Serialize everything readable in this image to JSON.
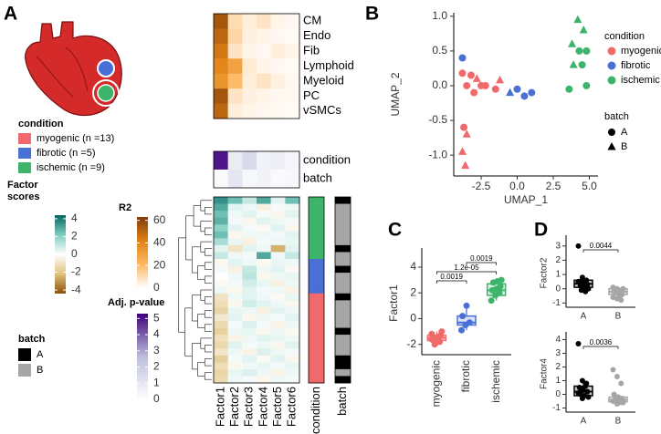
{
  "chart_data": [
    {
      "type": "heatmap",
      "panel": "A",
      "legend": {
        "title": "condition",
        "names": [
          "myogenic (n =13)",
          "fibrotic (n =5)",
          "ischemic (n =9)"
        ],
        "colors": [
          "#f0696b",
          "#4a6fd6",
          "#3cb56b"
        ]
      },
      "batch_legend": {
        "title": "batch",
        "names": [
          "A",
          "B"
        ],
        "colors": [
          "#000000",
          "#a6a6a6"
        ]
      },
      "colorbars": [
        {
          "title": [
            "Factor",
            "scores"
          ],
          "lim": [
            -4.4,
            4.4
          ],
          "ticks": [
            4,
            2,
            0,
            -2,
            -4
          ],
          "colors": [
            "#8c510a",
            "#dfc27d",
            "#ffffff",
            "#80cdc1",
            "#01665e"
          ]
        },
        {
          "title": [
            "R2"
          ],
          "lim": [
            0,
            63
          ],
          "ticks": [
            60,
            40,
            20,
            0
          ],
          "colors": [
            "#ffffff",
            "#fdb863",
            "#e08214",
            "#7f3b08"
          ]
        },
        {
          "title": [
            "Adj. p-value"
          ],
          "lim": [
            0,
            5.3
          ],
          "ticks": [
            5,
            4,
            3,
            2,
            1,
            0
          ],
          "colors": [
            "#ffffff",
            "#bcbddc",
            "#3f007d"
          ]
        }
      ],
      "cell_types": [
        "CM",
        "Endo",
        "Fib",
        "Lymphoid",
        "Myeloid",
        "PC",
        "vSMCs"
      ],
      "factors": [
        "Factor1",
        "Factor2",
        "Factor3",
        "Factor4",
        "Factor5",
        "Factor6"
      ],
      "r2": [
        [
          55,
          10,
          5,
          8,
          3,
          2
        ],
        [
          50,
          12,
          4,
          3,
          2,
          1
        ],
        [
          45,
          8,
          3,
          2,
          5,
          3
        ],
        [
          40,
          30,
          6,
          3,
          2,
          1
        ],
        [
          35,
          20,
          5,
          8,
          4,
          2
        ],
        [
          55,
          8,
          4,
          3,
          2,
          2
        ],
        [
          50,
          5,
          3,
          2,
          2,
          1
        ]
      ],
      "covariates": [
        "condition",
        "batch"
      ],
      "pvalues": [
        [
          5,
          0.8,
          1.5,
          0.5,
          0.7,
          0.4
        ],
        [
          0.2,
          1,
          0.3,
          0.5,
          0.2,
          0.3
        ]
      ],
      "scores": [
        [
          3.5,
          2.5,
          1.0,
          3.0,
          0.5,
          2.5
        ],
        [
          3.0,
          0.5,
          0.3,
          -0.5,
          0.2,
          0.3
        ],
        [
          2.5,
          0.3,
          0.5,
          0.2,
          -0.3,
          0.5
        ],
        [
          2.8,
          0.2,
          -0.3,
          0.5,
          0.3,
          0.2
        ],
        [
          2.0,
          0.5,
          0.2,
          -0.2,
          0.5,
          -0.3
        ],
        [
          2.5,
          -0.3,
          0.3,
          0.3,
          0.2,
          0.5
        ],
        [
          1.5,
          0.4,
          -0.5,
          0.2,
          0.3,
          0.4
        ],
        [
          0.5,
          -1.0,
          0.5,
          0.3,
          -2.5,
          0.5
        ],
        [
          1.0,
          0.3,
          0.2,
          3.0,
          0.3,
          1.0
        ],
        [
          -0.3,
          0.5,
          0.3,
          -0.2,
          0.4,
          0.3
        ],
        [
          0.2,
          -0.5,
          1.0,
          0.3,
          0.5,
          -0.2
        ],
        [
          0.0,
          0.3,
          1.2,
          -0.3,
          0.3,
          0.4
        ],
        [
          -0.2,
          0.2,
          0.8,
          0.4,
          -0.5,
          0.3
        ],
        [
          0.3,
          -0.3,
          0.5,
          0.2,
          0.3,
          -0.4
        ],
        [
          -1.0,
          0.3,
          0.5,
          0.3,
          -0.2,
          0.4
        ],
        [
          -1.2,
          -0.3,
          0.8,
          0.5,
          0.3,
          -0.3
        ],
        [
          -1.5,
          0.4,
          0.3,
          -0.5,
          0.5,
          0.3
        ],
        [
          -0.8,
          0.5,
          -0.3,
          0.3,
          0.2,
          0.5
        ],
        [
          -1.3,
          0.2,
          0.6,
          0.2,
          -0.4,
          0.3
        ],
        [
          -1.6,
          0.3,
          0.4,
          -0.3,
          0.3,
          -0.2
        ],
        [
          -1.1,
          -0.4,
          0.3,
          0.5,
          0.4,
          0.3
        ],
        [
          -1.4,
          0.5,
          0.2,
          0.3,
          -0.3,
          0.5
        ],
        [
          -0.9,
          0.3,
          -0.4,
          0.6,
          0.3,
          0.2
        ],
        [
          -1.7,
          0.2,
          0.5,
          -0.2,
          0.5,
          -0.3
        ],
        [
          -1.2,
          -0.3,
          0.3,
          0.4,
          0.2,
          0.4
        ],
        [
          -1.5,
          0.4,
          0.6,
          0.3,
          -0.4,
          0.3
        ],
        [
          -1.3,
          0.3,
          0.2,
          -0.3,
          0.3,
          0.2
        ]
      ],
      "strip_labels": [
        "condition",
        "batch"
      ],
      "condition_strip": [
        "#3cb56b",
        "#3cb56b",
        "#3cb56b",
        "#3cb56b",
        "#3cb56b",
        "#3cb56b",
        "#3cb56b",
        "#3cb56b",
        "#3cb56b",
        "#4a6fd6",
        "#4a6fd6",
        "#4a6fd6",
        "#4a6fd6",
        "#4a6fd6",
        "#f0696b",
        "#f0696b",
        "#f0696b",
        "#f0696b",
        "#f0696b",
        "#f0696b",
        "#f0696b",
        "#f0696b",
        "#f0696b",
        "#f0696b",
        "#f0696b",
        "#f0696b",
        "#f0696b"
      ],
      "batch_strip": [
        "#000000",
        "#a6a6a6",
        "#a6a6a6",
        "#a6a6a6",
        "#a6a6a6",
        "#a6a6a6",
        "#a6a6a6",
        "#000000",
        "#a6a6a6",
        "#a6a6a6",
        "#000000",
        "#a6a6a6",
        "#a6a6a6",
        "#a6a6a6",
        "#000000",
        "#a6a6a6",
        "#a6a6a6",
        "#a6a6a6",
        "#a6a6a6",
        "#000000",
        "#a6a6a6",
        "#a6a6a6",
        "#a6a6a6",
        "#000000",
        "#000000",
        "#a6a6a6",
        "#000000"
      ]
    },
    {
      "type": "scatter",
      "panel": "B",
      "xlabel": "UMAP_1",
      "ylabel": "UMAP_2",
      "xlim": [
        -4.4,
        5.6
      ],
      "ylim": [
        -1.3,
        1.05
      ],
      "xticks": [
        -2.5,
        {
          "value": 0,
          "label": "0.0"
        },
        2.5,
        {
          "value": 5,
          "label": "5.0"
        }
      ],
      "yticks": [
        {
          "value": 1,
          "label": "1.0"
        },
        0.5,
        {
          "value": 0,
          "label": "0.0"
        },
        -0.5,
        {
          "value": -1,
          "label": "-1.0"
        }
      ],
      "legend_title": "condition",
      "batch_title": "batch",
      "batch_names": [
        "A",
        "B"
      ],
      "series": [
        {
          "name": "myogenic",
          "color": "#f0696b",
          "x": [
            -3.8,
            -3.2,
            -2.8,
            -2.2,
            -2.5,
            -1.5,
            -1.2,
            -3.5,
            -3.0,
            -3.7,
            -3.5,
            -3.8,
            -3.6
          ],
          "y": [
            0.18,
            0.15,
            0.1,
            0.0,
            0.0,
            -0.05,
            0.08,
            0.0,
            -0.1,
            -0.6,
            -0.7,
            -0.95,
            -1.15
          ],
          "batch": [
            "A",
            "A",
            "B",
            "A",
            "A",
            "A",
            "B",
            "A",
            "A",
            "A",
            "B",
            "B",
            "B"
          ]
        },
        {
          "name": "fibrotic",
          "color": "#4a6fd6",
          "x": [
            -3.8,
            -0.5,
            0.0,
            0.5,
            1.0
          ],
          "y": [
            0.4,
            -0.1,
            -0.05,
            -0.15,
            -0.1
          ],
          "batch": [
            "A",
            "B",
            "A",
            "A",
            "A"
          ]
        },
        {
          "name": "ischemic",
          "color": "#3cb56b",
          "x": [
            4.2,
            4.6,
            3.8,
            4.3,
            4.8,
            3.9,
            4.5,
            3.6,
            4.8
          ],
          "y": [
            0.95,
            0.8,
            0.6,
            0.5,
            0.5,
            0.3,
            0.3,
            -0.05,
            0.0
          ],
          "batch": [
            "B",
            "B",
            "B",
            "A",
            "A",
            "B",
            "A",
            "A",
            "A"
          ]
        }
      ]
    },
    {
      "type": "box",
      "panel": "C",
      "ylabel": "Factor1",
      "categories": [
        "myogenic",
        "fibrotic",
        "ischemic"
      ],
      "colors": [
        "#f0696b",
        "#4a6fd6",
        "#3cb56b"
      ],
      "ylim": [
        -2.8,
        5.2
      ],
      "yticks": [
        4,
        2,
        0,
        -2
      ],
      "values": [
        [
          -1.2,
          -1.5,
          -1.8,
          -1.4,
          -1.6,
          -1.3,
          -1.7,
          -1.5,
          -1.0,
          -2.0,
          -1.4,
          -1.6,
          -1.9
        ],
        [
          -0.9,
          -0.5,
          -0.3,
          0.2,
          1.0
        ],
        [
          1.4,
          1.8,
          2.0,
          2.2,
          2.3,
          2.5,
          2.8,
          2.9,
          3.0
        ]
      ],
      "boxes": [
        {
          "lo": -2.0,
          "q1": -1.7,
          "median": -1.5,
          "q3": -1.3,
          "hi": -1.0
        },
        {
          "lo": -0.9,
          "q1": -0.5,
          "median": -0.3,
          "q3": 0.2,
          "hi": 1.0
        },
        {
          "lo": 1.4,
          "q1": 1.8,
          "median": 2.2,
          "q3": 2.7,
          "hi": 3.0
        }
      ],
      "brackets": [
        {
          "label": "0.0019",
          "between": [
            "myogenic",
            "fibrotic"
          ]
        },
        {
          "label": "1.2e-05",
          "between": [
            "myogenic",
            "ischemic"
          ]
        },
        {
          "label": "0.0019",
          "between": [
            "fibrotic",
            "ischemic"
          ]
        }
      ]
    },
    {
      "type": "box",
      "panel": "D",
      "ylabel": "Factor2",
      "categories": [
        "A",
        "B"
      ],
      "colors": [
        "#000000",
        "#a6a6a6"
      ],
      "ylim": [
        -1.3,
        3.5
      ],
      "yticks": [
        3,
        2,
        1,
        0,
        -1
      ],
      "values": [
        [
          3.0,
          0.8,
          0.6,
          0.5,
          0.4,
          0.3,
          0.2,
          0.1,
          0.0,
          -0.1,
          -0.2,
          0.5,
          0.3
        ],
        [
          0.1,
          0.0,
          -0.1,
          -0.2,
          -0.3,
          -0.4,
          -0.2,
          -0.1,
          0.0,
          -0.3,
          -0.5,
          -0.6,
          -0.7,
          -0.8
        ]
      ],
      "boxes": [
        {
          "lo": -0.2,
          "q1": 0.1,
          "median": 0.35,
          "q3": 0.6,
          "hi": 0.8
        },
        {
          "lo": -0.8,
          "q1": -0.4,
          "median": -0.2,
          "q3": 0.0,
          "hi": 0.1
        }
      ],
      "brackets": [
        {
          "label": "0.0044",
          "between": [
            "A",
            "B"
          ]
        }
      ]
    },
    {
      "type": "box",
      "ylabel": "Factor4",
      "categories": [
        "A",
        "B"
      ],
      "colors": [
        "#000000",
        "#a6a6a6"
      ],
      "ylim": [
        -1.3,
        4.3
      ],
      "yticks": [
        4,
        3,
        2,
        1,
        0,
        -1
      ],
      "values": [
        [
          3.7,
          1.0,
          0.8,
          0.5,
          0.3,
          0.2,
          0.0,
          -0.1,
          -0.2,
          0.4,
          0.6,
          0.1,
          -0.3
        ],
        [
          1.8,
          1.3,
          0.8,
          0.0,
          -0.2,
          -0.3,
          -0.4,
          -0.5,
          -0.6,
          -0.4,
          -0.3,
          -0.5,
          -0.7,
          -0.6
        ]
      ],
      "boxes": [
        {
          "lo": -0.3,
          "q1": -0.1,
          "median": 0.2,
          "q3": 0.6,
          "hi": 1.0
        },
        {
          "lo": -0.7,
          "q1": -0.55,
          "median": -0.4,
          "q3": -0.2,
          "hi": 0.0
        }
      ],
      "brackets": [
        {
          "label": "0.0036",
          "between": [
            "A",
            "B"
          ]
        }
      ]
    }
  ]
}
